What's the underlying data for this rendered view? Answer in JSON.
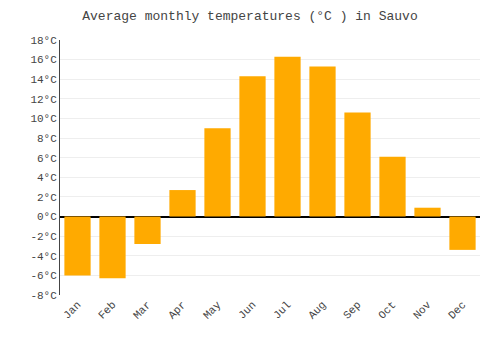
{
  "chart_data": {
    "type": "bar",
    "title": "Average monthly temperatures (°C ) in Sauvo",
    "categories": [
      "Jan",
      "Feb",
      "Mar",
      "Apr",
      "May",
      "Jun",
      "Jul",
      "Aug",
      "Sep",
      "Oct",
      "Nov",
      "Dec"
    ],
    "values": [
      -6.0,
      -6.3,
      -2.8,
      2.7,
      9.0,
      14.3,
      16.3,
      15.3,
      10.6,
      6.1,
      0.9,
      -3.4
    ],
    "color": "#FFAA00",
    "ylim": [
      -8,
      18
    ],
    "yticks": [
      {
        "value": -8,
        "label": "-8°C"
      },
      {
        "value": -6,
        "label": "-6°C"
      },
      {
        "value": -4,
        "label": "-4°C"
      },
      {
        "value": -2,
        "label": "-2°C"
      },
      {
        "value": 0,
        "label": "0°C"
      },
      {
        "value": 2,
        "label": "2°C"
      },
      {
        "value": 4,
        "label": "4°C"
      },
      {
        "value": 6,
        "label": "6°C"
      },
      {
        "value": 8,
        "label": "8°C"
      },
      {
        "value": 10,
        "label": "10°C"
      },
      {
        "value": 12,
        "label": "12°C"
      },
      {
        "value": 14,
        "label": "14°C"
      },
      {
        "value": 16,
        "label": "16°C"
      },
      {
        "value": 18,
        "label": "18°C"
      }
    ],
    "grid": true
  }
}
